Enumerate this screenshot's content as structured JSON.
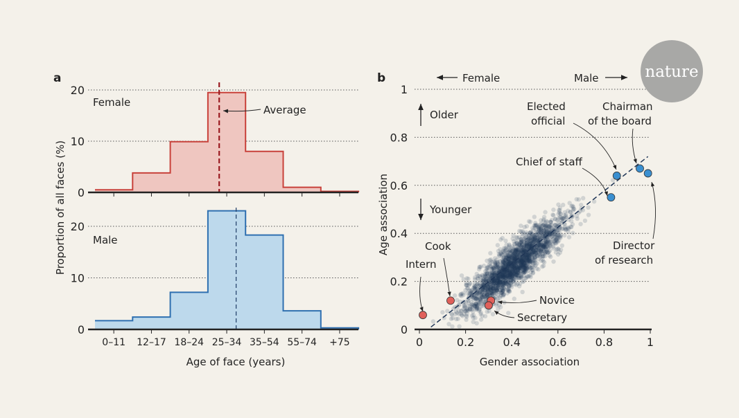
{
  "logo": "nature",
  "chart_data": [
    {
      "panel": "a",
      "type": "bar",
      "ylabel": "Proportion of all faces (%)",
      "xlabel": "Age of face (years)",
      "categories": [
        "0–11",
        "12–17",
        "18–24",
        "25–34",
        "35–54",
        "55–74",
        "+75"
      ],
      "yticks": [
        0,
        10,
        20
      ],
      "grid": true,
      "series": [
        {
          "name": "Female",
          "values": [
            0.5,
            3.8,
            9.9,
            19.5,
            8.0,
            1.0,
            0.2
          ],
          "color": "#c8413a",
          "fill": "#efc6c0",
          "average_bin_position": 3.3,
          "average_label": "Average"
        },
        {
          "name": "Male",
          "values": [
            1.7,
            2.4,
            7.2,
            23.0,
            18.3,
            3.6,
            0.3
          ],
          "color": "#2e6fb0",
          "fill": "#bdd9ec",
          "average_bin_position": 3.75
        }
      ]
    },
    {
      "panel": "b",
      "type": "scatter",
      "xlabel": "Gender association",
      "ylabel": "Age association",
      "xlim": [
        0,
        1
      ],
      "ylim": [
        0,
        1
      ],
      "xticks": [
        "0",
        "0.2",
        "0.4",
        "0.6",
        "0.8",
        "1"
      ],
      "yticks": [
        "0",
        "0.2",
        "0.4",
        "0.6",
        "0.8",
        "1"
      ],
      "grid": true,
      "direction_labels": {
        "female": "Female",
        "male": "Male",
        "older": "Older",
        "younger": "Younger"
      },
      "trend_line": {
        "from": [
          0.05,
          0.01
        ],
        "to": [
          0.99,
          0.72
        ]
      },
      "cloud_color": "#1f3556",
      "highlighted": [
        {
          "label": "Intern",
          "x": 0.015,
          "y": 0.06,
          "color": "#e0605a"
        },
        {
          "label": "Cook",
          "x": 0.135,
          "y": 0.12,
          "color": "#e0605a"
        },
        {
          "label": "Novice",
          "x": 0.31,
          "y": 0.12,
          "color": "#e0605a"
        },
        {
          "label": "Secretary",
          "x": 0.3,
          "y": 0.1,
          "color": "#e0605a"
        },
        {
          "label": "Chief of staff",
          "x": 0.83,
          "y": 0.55,
          "color": "#3a8fd0"
        },
        {
          "label": "Elected official",
          "x": 0.855,
          "y": 0.64,
          "color": "#3a8fd0"
        },
        {
          "label": "Chairman of the board",
          "x": 0.955,
          "y": 0.67,
          "color": "#3a8fd0"
        },
        {
          "label": "Director of research",
          "x": 0.99,
          "y": 0.65,
          "color": "#3a8fd0"
        }
      ]
    }
  ]
}
